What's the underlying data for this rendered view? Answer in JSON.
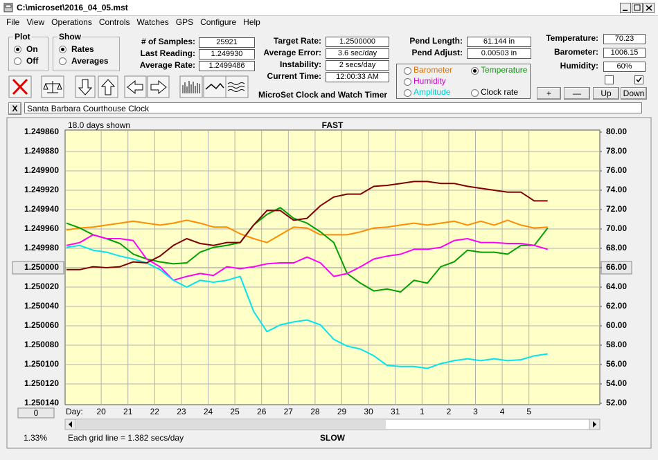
{
  "window": {
    "title": "C:\\microset\\2016_04_05.mst"
  },
  "menu": [
    "File",
    "View",
    "Operations",
    "Controls",
    "Watches",
    "GPS",
    "Configure",
    "Help"
  ],
  "plot_group": {
    "title": "Plot",
    "options": [
      "On",
      "Off"
    ]
  },
  "show_group": {
    "title": "Show",
    "options": [
      "Rates",
      "Averages"
    ]
  },
  "readouts": [
    [
      {
        "label": "# of Samples:",
        "value": "25921"
      },
      {
        "label": "Last Reading:",
        "value": "1.249930"
      },
      {
        "label": "Average Rate:",
        "value": "1.2499486"
      }
    ],
    [
      {
        "label": "Target Rate:",
        "value": "1.2500000"
      },
      {
        "label": "Average Error:",
        "value": "3.6 sec/day"
      },
      {
        "label": "Instability:",
        "value": "2 secs/day"
      },
      {
        "label": "Current Time:",
        "value": "12:00:33 AM"
      }
    ],
    [
      {
        "label": "Pend Length:",
        "value": "61.144 in"
      },
      {
        "label": "Pend Adjust:",
        "value": "0.00503 in"
      }
    ],
    [
      {
        "label": "Temperature:",
        "value": "70.23"
      },
      {
        "label": "Barometer:",
        "value": "1006.15"
      },
      {
        "label": "Humidity:",
        "value": "60%"
      }
    ]
  ],
  "caption": "MicroSet Clock and Watch Timer",
  "buttons": [
    "+",
    "—",
    "Up",
    "Down"
  ],
  "close_button": "X",
  "clock_name": "Santa Barbara Courthouse Clock",
  "scroll_button": "0",
  "status": "1.33%",
  "chart_data": {
    "type": "line",
    "title": "FAST",
    "bottom_label": "SLOW",
    "days_shown": "18.0 days shown",
    "x_label": "Day:",
    "footnote": "Each grid line = 1.382 secs/day",
    "grid": true,
    "y_inverted": true,
    "x": [
      18.7,
      19.2,
      19.7,
      20.2,
      20.7,
      21.2,
      21.7,
      22.2,
      22.7,
      23.2,
      23.7,
      24.2,
      24.7,
      25.2,
      25.7,
      26.2,
      26.7,
      27.2,
      27.7,
      28.2,
      28.7,
      29.2,
      29.7,
      30.2,
      30.7,
      31.2,
      31.7,
      32.2,
      32.7,
      33.2,
      33.7,
      34.2,
      34.7,
      35.2,
      35.7,
      36.2,
      36.7
    ],
    "xlim": [
      18.65,
      38.65
    ],
    "xticks": [
      20,
      21,
      22,
      23,
      24,
      25,
      26,
      27,
      28,
      29,
      30,
      31,
      {
        "value": 32,
        "label": "1"
      },
      {
        "value": 33,
        "label": "2"
      },
      {
        "value": 34,
        "label": "3"
      },
      {
        "value": 35,
        "label": "4"
      },
      {
        "value": 36,
        "label": "5"
      }
    ],
    "ylim": [
      1.24986,
      1.25014
    ],
    "yticks": [
      {
        "value": 1.24986,
        "label": "1.249860"
      },
      {
        "value": 1.24988,
        "label": "1.249880"
      },
      {
        "value": 1.2499,
        "label": "1.249900"
      },
      {
        "value": 1.24992,
        "label": "1.249920"
      },
      {
        "value": 1.24994,
        "label": "1.249940"
      },
      {
        "value": 1.24996,
        "label": "1.249960"
      },
      {
        "value": 1.24998,
        "label": "1.249980"
      },
      {
        "value": 1.25,
        "label": "1.250000"
      },
      {
        "value": 1.25002,
        "label": "1.250020"
      },
      {
        "value": 1.25004,
        "label": "1.250040"
      },
      {
        "value": 1.25006,
        "label": "1.250060"
      },
      {
        "value": 1.25008,
        "label": "1.250080"
      },
      {
        "value": 1.2501,
        "label": "1.250100"
      },
      {
        "value": 1.25012,
        "label": "1.250120"
      },
      {
        "value": 1.25014,
        "label": "1.250140"
      }
    ],
    "y2lim": [
      52,
      80
    ],
    "y2ticks": [
      {
        "value": 80,
        "label": "80.00"
      },
      {
        "value": 78,
        "label": "78.00"
      },
      {
        "value": 76,
        "label": "76.00"
      },
      {
        "value": 74,
        "label": "74.00"
      },
      {
        "value": 72,
        "label": "72.00"
      },
      {
        "value": 70,
        "label": "70.00"
      },
      {
        "value": 68,
        "label": "68.00"
      },
      {
        "value": 66,
        "label": "66.00"
      },
      {
        "value": 64,
        "label": "64.00"
      },
      {
        "value": 62,
        "label": "62.00"
      },
      {
        "value": 60,
        "label": "60.00"
      },
      {
        "value": 58,
        "label": "58.00"
      },
      {
        "value": 56,
        "label": "56.00"
      },
      {
        "value": 54,
        "label": "54.00"
      },
      {
        "value": 52,
        "label": "52.00"
      }
    ],
    "series": [
      {
        "name": "Barometer",
        "color": "#ff8c00",
        "axis": "y2",
        "values": [
          69.9,
          70.1,
          70.2,
          70.4,
          70.6,
          70.8,
          70.6,
          70.4,
          70.6,
          70.9,
          70.6,
          70.2,
          70.2,
          69.5,
          69.0,
          68.6,
          69.4,
          70.2,
          70.1,
          69.4,
          69.4,
          69.4,
          69.7,
          70.1,
          70.2,
          70.4,
          70.6,
          70.4,
          70.6,
          70.8,
          70.4,
          70.8,
          70.4,
          70.9,
          70.4,
          70.1,
          70.2
        ]
      },
      {
        "name": "Temperature",
        "color": "#00a000",
        "axis": "y2",
        "values": [
          70.6,
          70.1,
          69.4,
          69.0,
          68.5,
          67.4,
          66.9,
          66.6,
          66.4,
          66.5,
          67.6,
          68.1,
          68.3,
          68.6,
          70.4,
          71.5,
          72.2,
          71.1,
          70.6,
          69.7,
          68.6,
          65.4,
          64.4,
          63.6,
          63.8,
          63.5,
          64.7,
          64.4,
          66.1,
          66.6,
          67.8,
          67.6,
          67.6,
          67.4,
          68.3,
          68.3,
          70.1
        ]
      },
      {
        "name": "Humidity",
        "color": "#ff00ff",
        "axis": "y2",
        "values": [
          68.3,
          68.6,
          69.4,
          69.0,
          69.0,
          68.8,
          66.9,
          66.1,
          64.7,
          65.1,
          65.4,
          65.2,
          66.1,
          65.9,
          66.1,
          66.4,
          66.5,
          66.5,
          67.1,
          66.5,
          65.1,
          65.4,
          66.1,
          66.9,
          67.2,
          67.4,
          67.9,
          67.9,
          68.1,
          68.8,
          69.0,
          68.6,
          68.6,
          68.5,
          68.5,
          68.3,
          67.9
        ]
      },
      {
        "name": "Amplitude",
        "color": "#00e5ee",
        "axis": "y2",
        "values": [
          68.1,
          68.3,
          67.8,
          67.6,
          67.2,
          66.9,
          66.5,
          65.8,
          64.7,
          64.0,
          64.7,
          64.5,
          64.7,
          65.1,
          61.5,
          59.4,
          60.1,
          60.4,
          60.6,
          60.1,
          58.6,
          57.9,
          57.6,
          56.9,
          55.9,
          55.8,
          55.8,
          55.6,
          56.1,
          56.4,
          56.6,
          56.4,
          56.6,
          56.4,
          56.5,
          56.9,
          57.1
        ]
      },
      {
        "name": "Clock rate",
        "color": "#800000",
        "values": [
          1.250002,
          1.250002,
          1.249999,
          1.25,
          1.249999,
          1.249994,
          1.249995,
          1.249988,
          1.249977,
          1.24997,
          1.249975,
          1.249977,
          1.249974,
          1.249974,
          1.249956,
          1.249941,
          1.249941,
          1.249951,
          1.249949,
          1.249936,
          1.249927,
          1.249924,
          1.249924,
          1.249916,
          1.249915,
          1.249913,
          1.249911,
          1.249911,
          1.249913,
          1.249913,
          1.249916,
          1.249918,
          1.24992,
          1.249922,
          1.249922,
          1.249931,
          1.249931
        ]
      }
    ]
  }
}
